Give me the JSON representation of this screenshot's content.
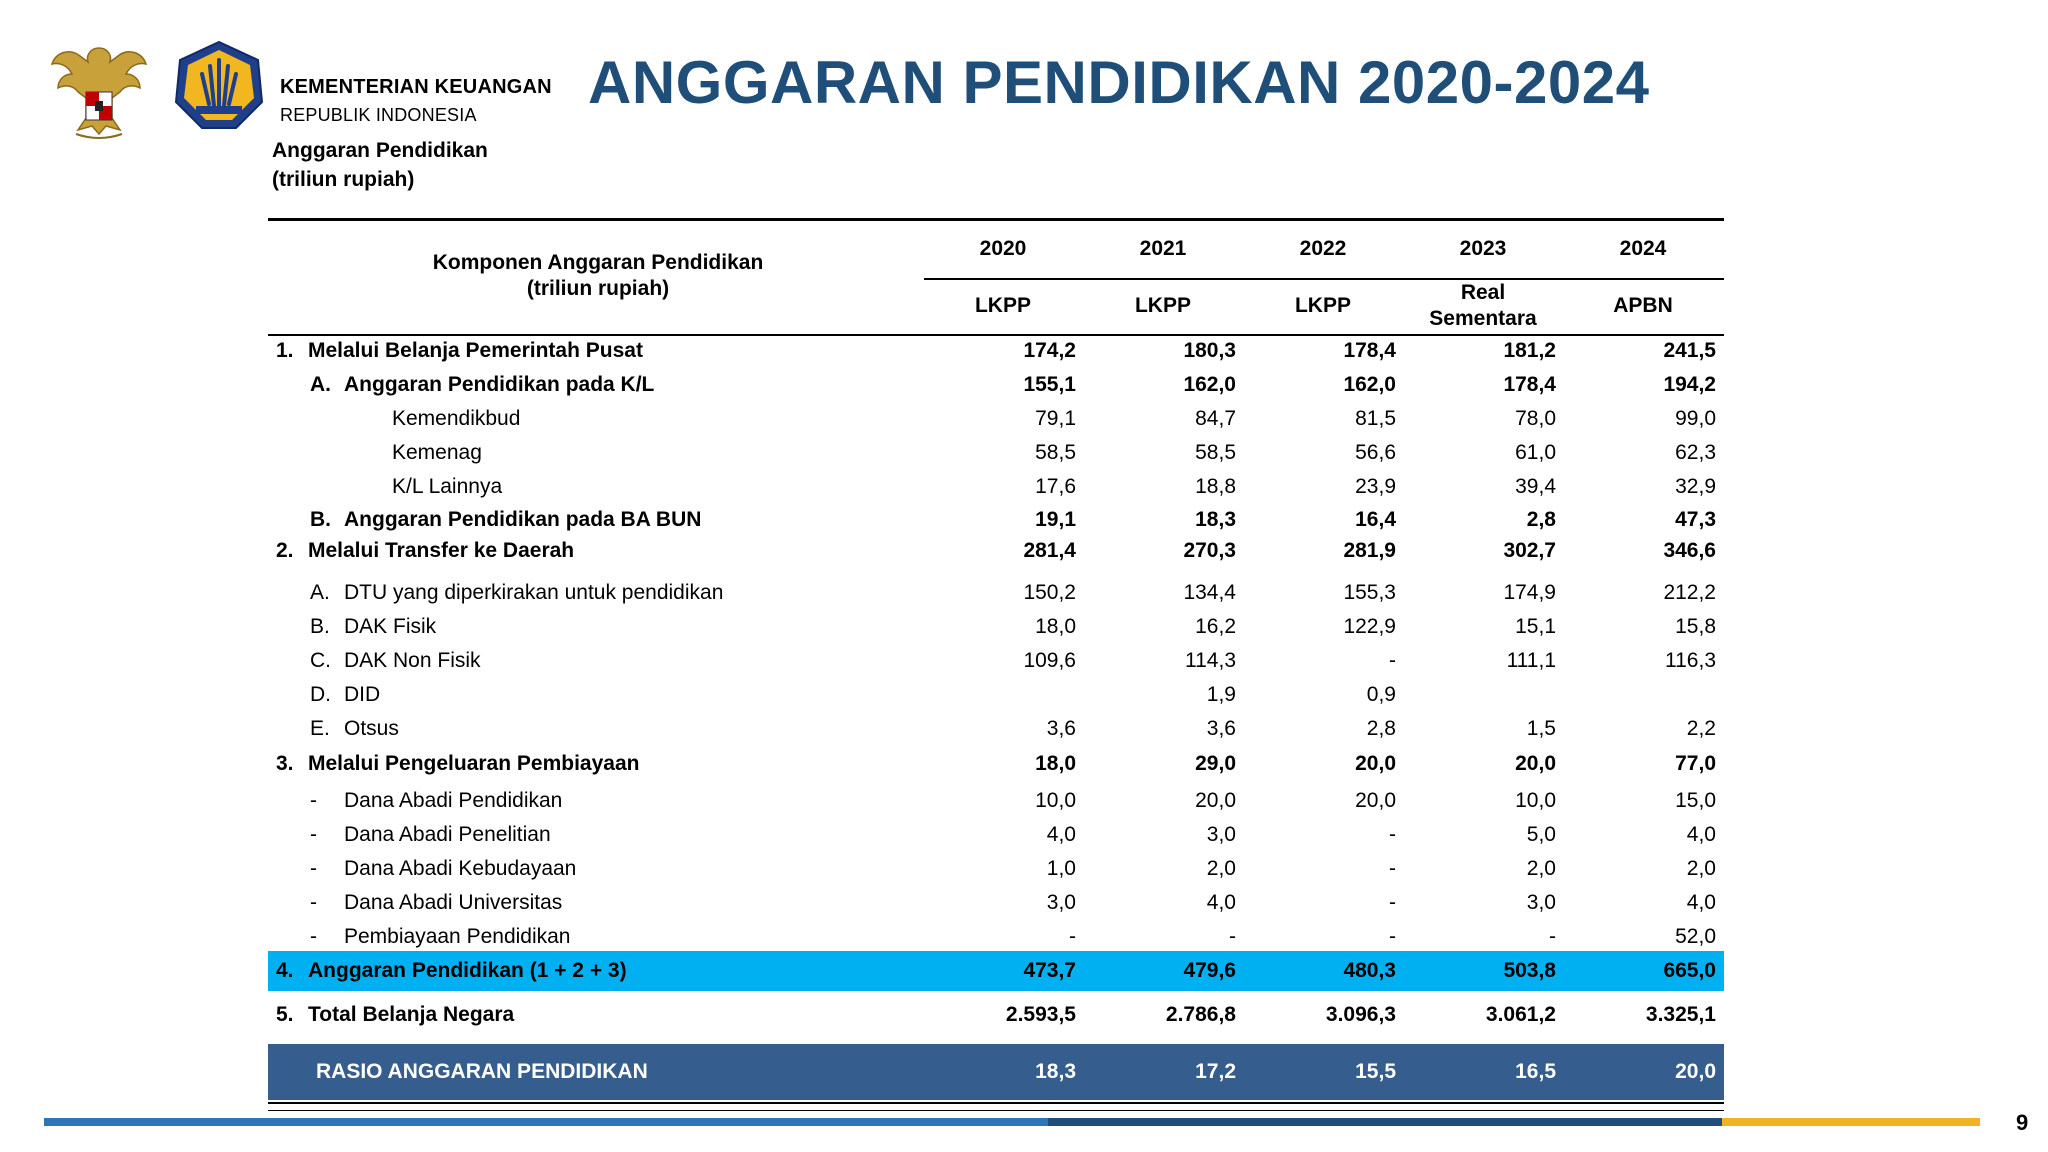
{
  "header": {
    "org_name": "KEMENTERIAN KEUANGAN",
    "org_sub": "REPUBLIK INDONESIA",
    "title": "ANGGARAN PENDIDIKAN 2020-2024",
    "unit_line1": "Anggaran Pendidikan",
    "unit_line2": "(triliun rupiah)"
  },
  "table": {
    "component_header_line1": "Komponen Anggaran Pendidikan",
    "component_header_line2": "(triliun rupiah)",
    "years": [
      "2020",
      "2021",
      "2022",
      "2023",
      "2024"
    ],
    "statuses": [
      "LKPP",
      "LKPP",
      "LKPP",
      "Real Sementara",
      "APBN"
    ],
    "status_2023_line1": "Real",
    "status_2023_line2": "Sementara",
    "rows": [
      {
        "prefix": "1.",
        "label": "Melalui Belanja Pemerintah Pusat",
        "values": [
          "174,2",
          "180,3",
          "178,4",
          "181,2",
          "241,5"
        ]
      },
      {
        "prefix": "A.",
        "label": "Anggaran Pendidikan pada K/L",
        "values": [
          "155,1",
          "162,0",
          "162,0",
          "178,4",
          "194,2"
        ]
      },
      {
        "prefix": "",
        "label": "Kemendikbud",
        "values": [
          "79,1",
          "84,7",
          "81,5",
          "78,0",
          "99,0"
        ]
      },
      {
        "prefix": "",
        "label": "Kemenag",
        "values": [
          "58,5",
          "58,5",
          "56,6",
          "61,0",
          "62,3"
        ]
      },
      {
        "prefix": "",
        "label": "K/L Lainnya",
        "values": [
          "17,6",
          "18,8",
          "23,9",
          "39,4",
          "32,9"
        ]
      },
      {
        "prefix": "B.",
        "label": "Anggaran Pendidikan pada BA BUN",
        "values": [
          "19,1",
          "18,3",
          "16,4",
          "2,8",
          "47,3"
        ]
      },
      {
        "prefix": "2.",
        "label": "Melalui Transfer ke Daerah",
        "values": [
          "281,4",
          "270,3",
          "281,9",
          "302,7",
          "346,6"
        ]
      },
      {
        "prefix": "A.",
        "label": "DTU yang diperkirakan untuk pendidikan",
        "values": [
          "150,2",
          "134,4",
          "155,3",
          "174,9",
          "212,2"
        ]
      },
      {
        "prefix": "B.",
        "label": "DAK Fisik",
        "values": [
          "18,0",
          "16,2",
          "122,9",
          "15,1",
          "15,8"
        ]
      },
      {
        "prefix": "C.",
        "label": "DAK Non Fisik",
        "values": [
          "109,6",
          "114,3",
          "-",
          "111,1",
          "116,3"
        ]
      },
      {
        "prefix": "D.",
        "label": "DID",
        "values": [
          "",
          "1,9",
          "0,9",
          "",
          ""
        ]
      },
      {
        "prefix": "E.",
        "label": "Otsus",
        "values": [
          "3,6",
          "3,6",
          "2,8",
          "1,5",
          "2,2"
        ]
      },
      {
        "prefix": "3.",
        "label": "Melalui Pengeluaran Pembiayaan",
        "values": [
          "18,0",
          "29,0",
          "20,0",
          "20,0",
          "77,0"
        ]
      },
      {
        "prefix": "-",
        "label": "Dana Abadi Pendidikan",
        "values": [
          "10,0",
          "20,0",
          "20,0",
          "10,0",
          "15,0"
        ]
      },
      {
        "prefix": "-",
        "label": "Dana Abadi Penelitian",
        "values": [
          "4,0",
          "3,0",
          "-",
          "5,0",
          "4,0"
        ]
      },
      {
        "prefix": "-",
        "label": "Dana Abadi Kebudayaan",
        "values": [
          "1,0",
          "2,0",
          "-",
          "2,0",
          "2,0"
        ]
      },
      {
        "prefix": "-",
        "label": "Dana Abadi Universitas",
        "values": [
          "3,0",
          "4,0",
          "-",
          "3,0",
          "4,0"
        ]
      },
      {
        "prefix": "-",
        "label": "Pembiayaan Pendidikan",
        "values": [
          "-",
          "-",
          "-",
          "-",
          "52,0"
        ]
      },
      {
        "prefix": "4.",
        "label": "Anggaran Pendidikan (1 + 2 + 3)",
        "values": [
          "473,7",
          "479,6",
          "480,3",
          "503,8",
          "665,0"
        ]
      },
      {
        "prefix": "5.",
        "label": "Total Belanja Negara",
        "values": [
          "2.593,5",
          "2.786,8",
          "3.096,3",
          "3.061,2",
          "3.325,1"
        ]
      }
    ],
    "ratio": {
      "label": "RASIO ANGGARAN PENDIDIKAN",
      "values": [
        "18,3",
        "17,2",
        "15,5",
        "16,5",
        "20,0"
      ]
    }
  },
  "footer": {
    "page_number": "9"
  },
  "colors": {
    "title": "#1f4e79",
    "highlight_row": "#00b0f0",
    "ratio_row": "#355e8e",
    "bar_blue": "#2e75b6",
    "bar_navy": "#1f4e79",
    "bar_gold": "#f0b323"
  }
}
